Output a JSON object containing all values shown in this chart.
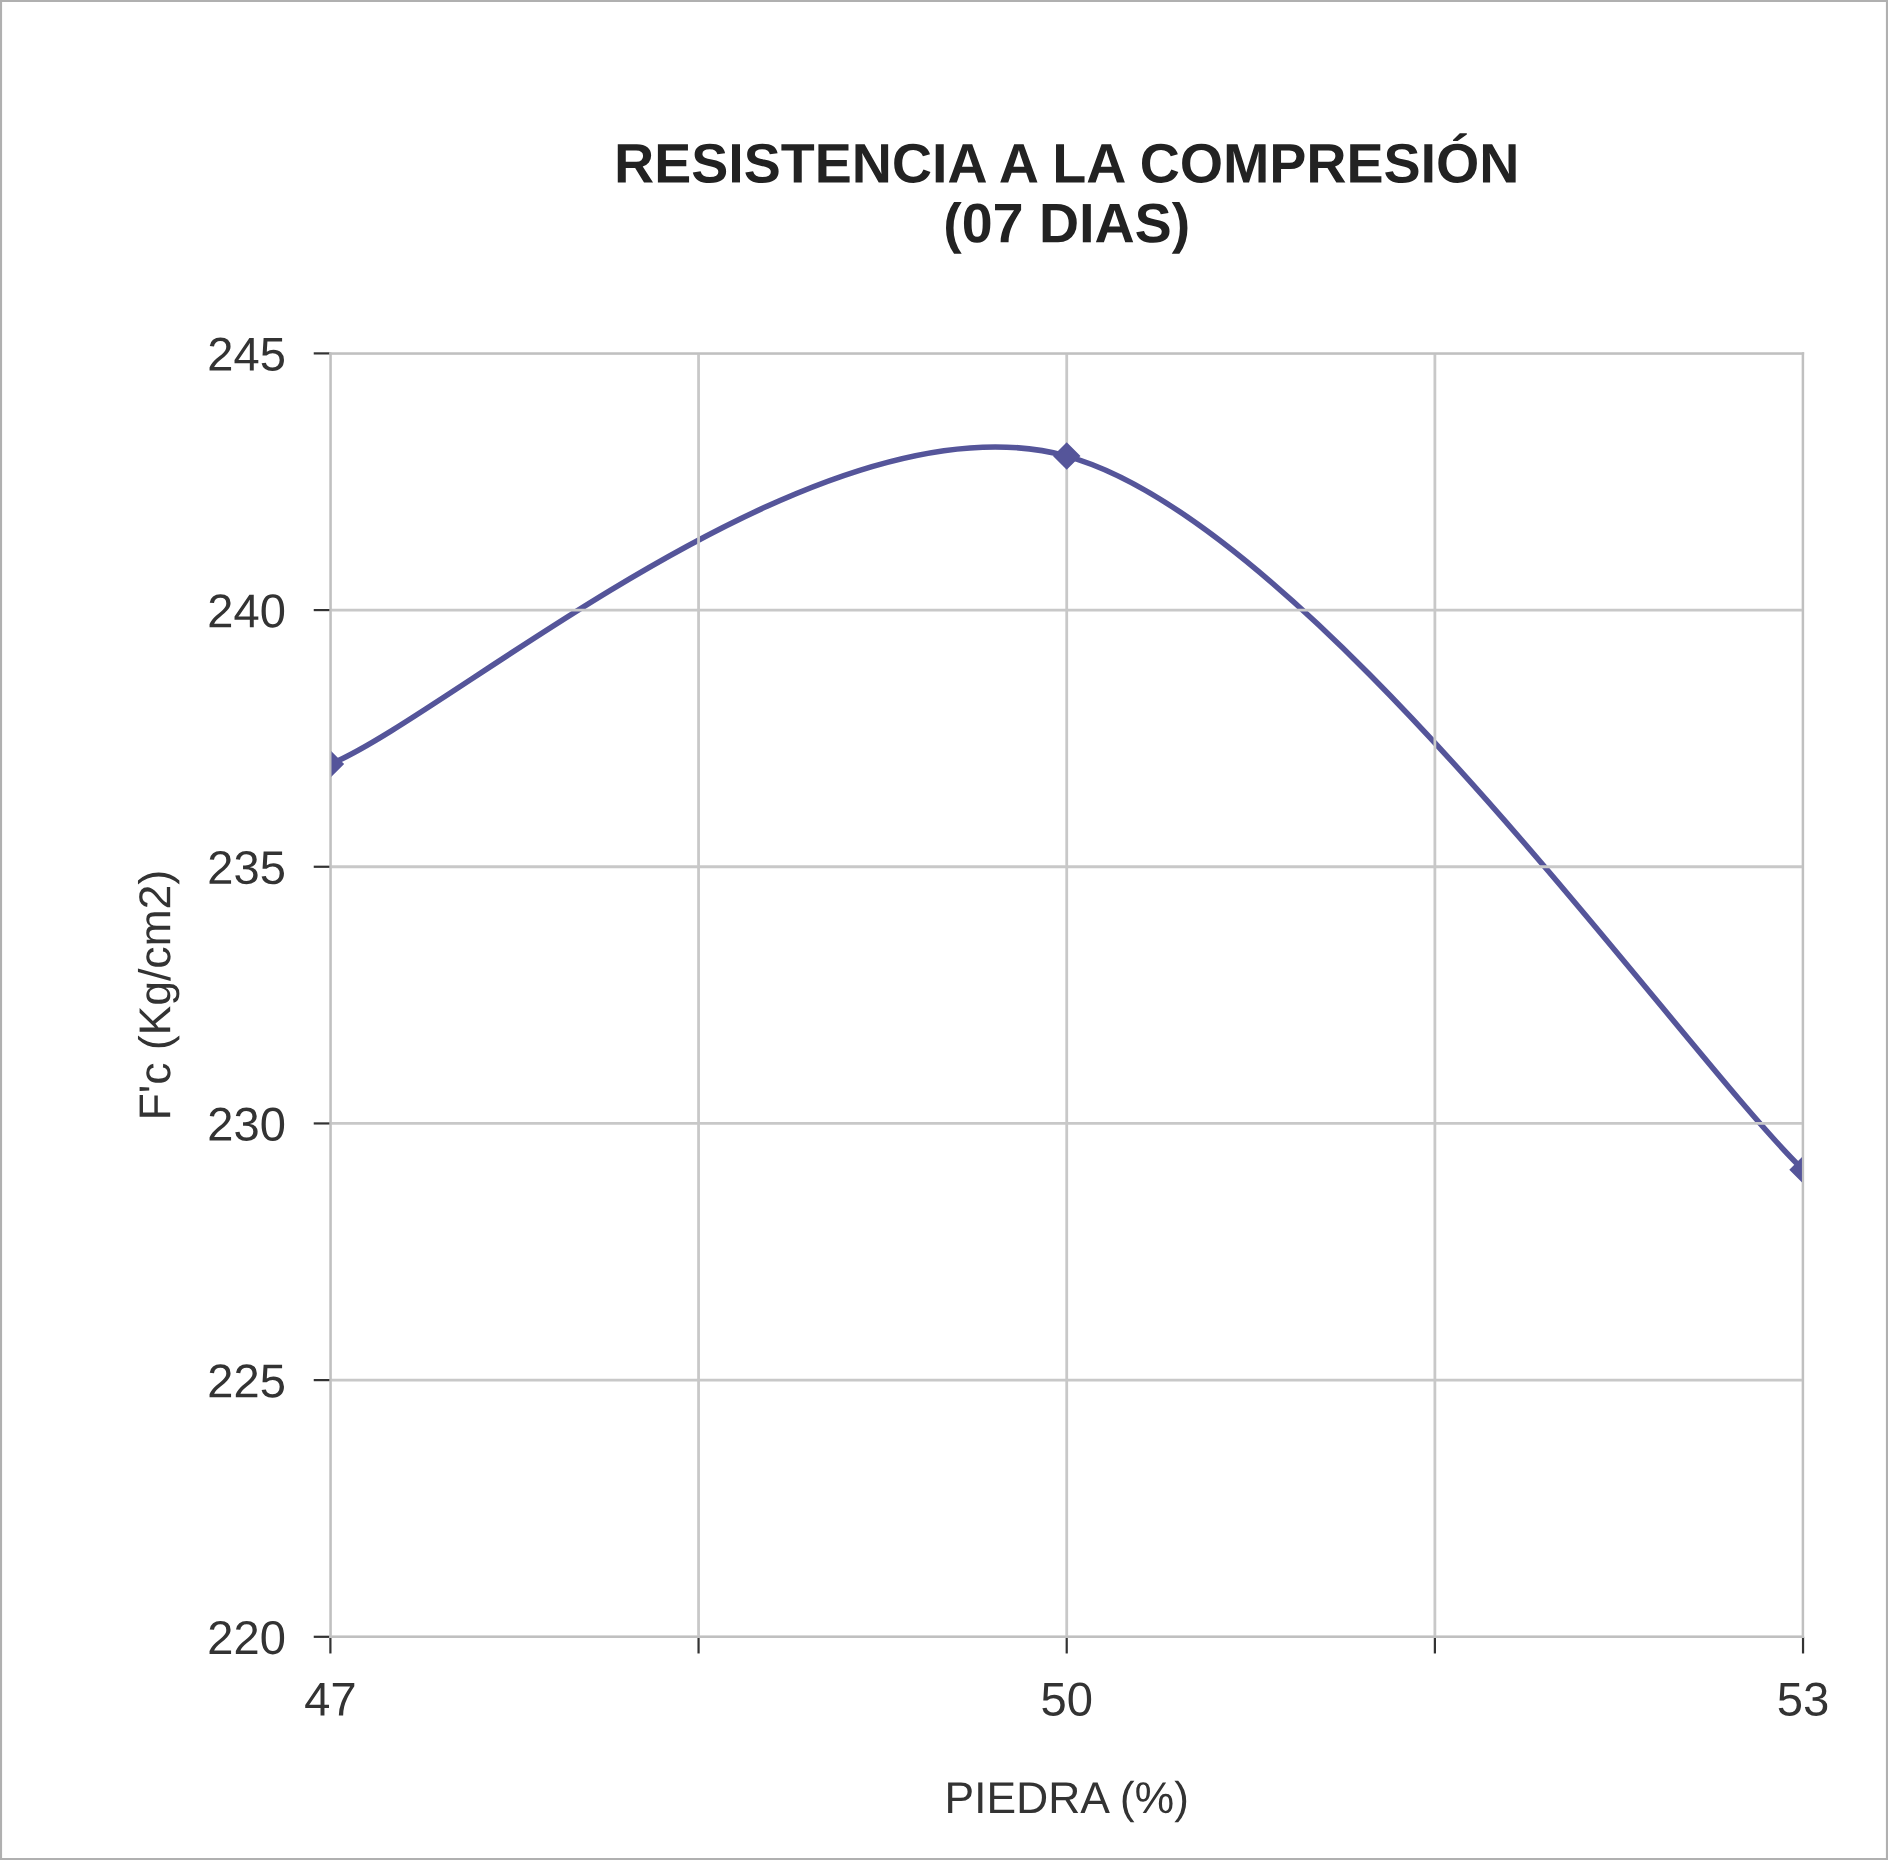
{
  "chart_data": {
    "type": "line",
    "title": "RESISTENCIA A LA COMPRESIÓN\n(07 DIAS)",
    "xlabel": "PIEDRA (%)",
    "ylabel": "F'c (Kg/cm2)",
    "x": [
      47,
      50,
      53
    ],
    "series": [
      {
        "color": "#55559a",
        "values": [
          237,
          243,
          229.1
        ]
      }
    ],
    "xlim": [
      47,
      53
    ],
    "xticks": [
      47,
      {
        "value": 48.5,
        "label": null
      },
      50,
      {
        "value": 51.5,
        "label": null
      },
      53
    ],
    "ylim": [
      220,
      245
    ],
    "yticks": [
      220,
      225,
      230,
      235,
      240,
      245
    ],
    "grid": true,
    "marker": "diamond",
    "line_style": "solid",
    "legend": false
  }
}
